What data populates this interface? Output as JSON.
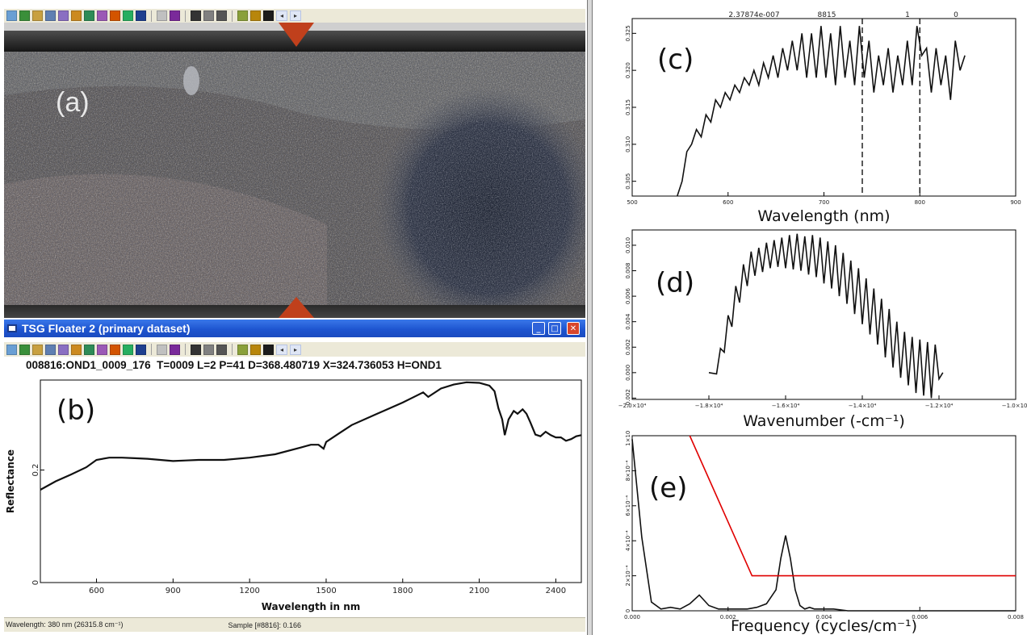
{
  "toolbar": {
    "icons": [
      "help-icon",
      "zoom-icon",
      "image-icon",
      "filter-icon",
      "chart-icon",
      "tile-icon",
      "palette-icon",
      "grid-icon",
      "brush-icon",
      "globe-icon",
      "spectrum-icon",
      "blank-icon",
      "color-map-icon",
      "split-icon",
      "copy-icon",
      "print-icon",
      "pointer-icon",
      "swatch-icon",
      "world-dropdown-icon"
    ],
    "colors": [
      "#6a9fd4",
      "#3a8f3a",
      "#c8a040",
      "#5f7fb2",
      "#8a6fc2",
      "#cc8a20",
      "#2e8b57",
      "#9b59b6",
      "#d35400",
      "#27ae60",
      "#1f3f8f",
      "#c0c0c0",
      "#7a2a9a",
      "#333333",
      "#808080",
      "#555555",
      "#8aa03a",
      "#b8860b",
      "#1c1c1c"
    ],
    "prev_label": "◂",
    "next_label": "▸"
  },
  "photo": {
    "label": "(a)"
  },
  "floater": {
    "title": "TSG Floater 2 (primary dataset)",
    "minimize_label": "_",
    "maximize_label": "□",
    "close_label": "✕"
  },
  "info_line": "008816:OND1_0009_176  T=0009 L=2 P=41 D=368.480719 X=324.736053 H=OND1",
  "status": {
    "wavelength": "Wavelength: 380 nm  (26315.8 cm⁻¹)",
    "sample": "Sample [#8816]: 0.166"
  },
  "chart_data": [
    {
      "id": "b",
      "type": "line",
      "label": "(b)",
      "xlabel": "Wavelength in nm",
      "ylabel": "Reflectance",
      "xlim": [
        380,
        2500
      ],
      "ylim": [
        0,
        0.36
      ],
      "xticks": [
        600,
        900,
        1200,
        1500,
        1800,
        2100,
        2400
      ],
      "yticks": [
        {
          "v": 0,
          "t": "0"
        },
        {
          "v": 0.2,
          "t": "0.2"
        }
      ],
      "color": "#111111",
      "series": [
        {
          "x": [
            380,
            440,
            500,
            560,
            600,
            650,
            700,
            750,
            800,
            850,
            900,
            950,
            1000,
            1100,
            1200,
            1300,
            1400,
            1440,
            1470,
            1490,
            1500,
            1550,
            1600,
            1700,
            1800,
            1880,
            1900,
            1950,
            2000,
            2050,
            2100,
            2140,
            2160,
            2175,
            2190,
            2200,
            2215,
            2235,
            2250,
            2270,
            2285,
            2300,
            2320,
            2340,
            2360,
            2380,
            2400,
            2420,
            2440,
            2460,
            2480,
            2500
          ],
          "y": [
            0.165,
            0.18,
            0.192,
            0.205,
            0.218,
            0.222,
            0.222,
            0.221,
            0.22,
            0.218,
            0.216,
            0.217,
            0.218,
            0.218,
            0.222,
            0.228,
            0.24,
            0.245,
            0.245,
            0.238,
            0.25,
            0.265,
            0.28,
            0.3,
            0.32,
            0.338,
            0.33,
            0.345,
            0.352,
            0.356,
            0.355,
            0.35,
            0.34,
            0.31,
            0.29,
            0.262,
            0.29,
            0.305,
            0.3,
            0.308,
            0.3,
            0.285,
            0.263,
            0.26,
            0.268,
            0.262,
            0.258,
            0.258,
            0.252,
            0.255,
            0.26,
            0.262
          ]
        }
      ]
    },
    {
      "id": "c",
      "type": "line",
      "label": "(c)",
      "xlabel": "Wavelength (nm)",
      "ylabel": "",
      "xlim": [
        500,
        900
      ],
      "ylim": [
        0.303,
        0.327
      ],
      "xticks": [
        {
          "v": 500,
          "t": "500"
        },
        {
          "v": 600,
          "t": "600"
        },
        {
          "v": 700,
          "t": "700"
        },
        {
          "v": 800,
          "t": "800"
        },
        {
          "v": 900,
          "t": "900"
        }
      ],
      "yticks": [
        {
          "v": 0.305,
          "t": "0.305"
        },
        {
          "v": 0.31,
          "t": "0.310"
        },
        {
          "v": 0.315,
          "t": "0.315"
        },
        {
          "v": 0.32,
          "t": "0.320"
        },
        {
          "v": 0.325,
          "t": "0.325"
        }
      ],
      "top_labels": [
        "2.37874e-007",
        "8815",
        "1",
        "0"
      ],
      "vlines": [
        740,
        800
      ],
      "color": "#111111",
      "series": [
        {
          "x": [
            547,
            552,
            557,
            562,
            567,
            572,
            577,
            582,
            587,
            592,
            597,
            602,
            607,
            612,
            617,
            622,
            627,
            632,
            637,
            642,
            647,
            652,
            657,
            662,
            667,
            672,
            677,
            682,
            687,
            692,
            697,
            702,
            707,
            712,
            717,
            722,
            727,
            732,
            737,
            742,
            747,
            752,
            757,
            762,
            767,
            772,
            777,
            782,
            787,
            792,
            797,
            802,
            807,
            812,
            817,
            822,
            827,
            832,
            837,
            842,
            847
          ],
          "y": [
            0.303,
            0.305,
            0.309,
            0.31,
            0.312,
            0.311,
            0.314,
            0.313,
            0.316,
            0.315,
            0.317,
            0.316,
            0.318,
            0.317,
            0.319,
            0.318,
            0.32,
            0.318,
            0.321,
            0.319,
            0.322,
            0.319,
            0.323,
            0.32,
            0.324,
            0.32,
            0.325,
            0.319,
            0.325,
            0.319,
            0.326,
            0.319,
            0.325,
            0.318,
            0.326,
            0.319,
            0.324,
            0.318,
            0.326,
            0.319,
            0.324,
            0.317,
            0.322,
            0.318,
            0.323,
            0.317,
            0.322,
            0.318,
            0.324,
            0.318,
            0.326,
            0.322,
            0.323,
            0.317,
            0.323,
            0.318,
            0.322,
            0.316,
            0.324,
            0.32,
            0.322
          ]
        }
      ]
    },
    {
      "id": "d",
      "type": "line",
      "label": "(d)",
      "xlabel": "Wavenumber (-cm⁻¹)",
      "ylabel": "",
      "xlim": [
        -20000,
        -10000
      ],
      "ylim": [
        -0.0021,
        0.0112
      ],
      "xticks": [
        {
          "v": -20000,
          "t": "−2.0×10⁴"
        },
        {
          "v": -18000,
          "t": "−1.8×10⁴"
        },
        {
          "v": -16000,
          "t": "−1.6×10⁴"
        },
        {
          "v": -14000,
          "t": "−1.4×10⁴"
        },
        {
          "v": -12000,
          "t": "−1.2×10⁴"
        },
        {
          "v": -10000,
          "t": "−1.0×10⁴"
        }
      ],
      "yticks": [
        {
          "v": -0.002,
          "t": "-0.002"
        },
        {
          "v": 0,
          "t": "0.000"
        },
        {
          "v": 0.002,
          "t": "0.002"
        },
        {
          "v": 0.004,
          "t": "0.004"
        },
        {
          "v": 0.006,
          "t": "0.006"
        },
        {
          "v": 0.008,
          "t": "0.008"
        },
        {
          "v": 0.01,
          "t": "0.010"
        }
      ],
      "color": "#111111",
      "series": [
        {
          "x": [
            -18000,
            -17800,
            -17700,
            -17600,
            -17500,
            -17400,
            -17300,
            -17200,
            -17100,
            -17000,
            -16900,
            -16800,
            -16700,
            -16600,
            -16500,
            -16400,
            -16300,
            -16200,
            -16100,
            -16000,
            -15900,
            -15800,
            -15700,
            -15600,
            -15500,
            -15400,
            -15300,
            -15200,
            -15100,
            -15000,
            -14900,
            -14800,
            -14700,
            -14600,
            -14500,
            -14400,
            -14300,
            -14200,
            -14100,
            -14000,
            -13900,
            -13800,
            -13700,
            -13600,
            -13500,
            -13400,
            -13300,
            -13200,
            -13100,
            -13000,
            -12900,
            -12800,
            -12700,
            -12600,
            -12500,
            -12400,
            -12300,
            -12200,
            -12100,
            -12000,
            -11900
          ],
          "y": [
            0.0,
            -0.0001,
            0.0019,
            0.0016,
            0.0045,
            0.0036,
            0.0068,
            0.0055,
            0.0085,
            0.0068,
            0.0095,
            0.0076,
            0.0098,
            0.0079,
            0.0102,
            0.0082,
            0.0104,
            0.0083,
            0.0106,
            0.0082,
            0.0108,
            0.0081,
            0.0109,
            0.008,
            0.0107,
            0.0077,
            0.0108,
            0.0075,
            0.0106,
            0.007,
            0.0103,
            0.0066,
            0.01,
            0.006,
            0.0094,
            0.0054,
            0.0088,
            0.0046,
            0.0082,
            0.0038,
            0.0074,
            0.003,
            0.0066,
            0.0022,
            0.0058,
            0.0012,
            0.005,
            0.0004,
            0.004,
            -0.0004,
            0.0032,
            -0.001,
            0.0028,
            -0.0016,
            0.0026,
            -0.0018,
            0.0024,
            -0.002,
            0.0022,
            -0.0005,
            0.0
          ]
        }
      ]
    },
    {
      "id": "e",
      "type": "line",
      "label": "(e)",
      "xlabel": "Frequency (cycles/cm⁻¹)",
      "ylabel": "",
      "xlim": [
        0,
        0.008
      ],
      "ylim": [
        0,
        0.001
      ],
      "xticks": [
        {
          "v": 0,
          "t": "0.000"
        },
        {
          "v": 0.002,
          "t": "0.002"
        },
        {
          "v": 0.004,
          "t": "0.004"
        },
        {
          "v": 0.006,
          "t": "0.006"
        },
        {
          "v": 0.008,
          "t": "0.008"
        }
      ],
      "yticks": [
        {
          "v": 0,
          "t": "0"
        },
        {
          "v": 0.0002,
          "t": "2×10⁻⁴"
        },
        {
          "v": 0.0004,
          "t": "4×10⁻⁴"
        },
        {
          "v": 0.0006,
          "t": "6×10⁻⁴"
        },
        {
          "v": 0.0008,
          "t": "8×10⁻⁴"
        },
        {
          "v": 0.001,
          "t": "1×10⁻³"
        }
      ],
      "color": "#111111",
      "series": [
        {
          "x": [
            0,
            0.0002,
            0.0004,
            0.0006,
            0.0008,
            0.001,
            0.0012,
            0.0014,
            0.0016,
            0.0018,
            0.002,
            0.0022,
            0.0024,
            0.0026,
            0.0028,
            0.003,
            0.0031,
            0.0032,
            0.0033,
            0.0034,
            0.0035,
            0.0036,
            0.0037,
            0.0038,
            0.0039,
            0.0042,
            0.0045,
            0.005,
            0.0055,
            0.006,
            0.007,
            0.008
          ],
          "y": [
            0.00098,
            0.00042,
            5e-05,
            1e-05,
            2e-05,
            1e-05,
            4e-05,
            9e-05,
            3e-05,
            1e-05,
            1e-05,
            1e-05,
            1e-05,
            2e-05,
            4e-05,
            0.00012,
            0.0003,
            0.00043,
            0.0003,
            0.00012,
            3e-05,
            1e-05,
            2e-05,
            1e-05,
            1e-05,
            1e-05,
            0,
            0,
            0,
            0,
            0,
            0
          ]
        },
        {
          "x": [
            0.0012,
            0.0025,
            0.008
          ],
          "y": [
            0.001,
            0.0002,
            0.0002
          ],
          "color": "#e00000"
        }
      ]
    }
  ]
}
